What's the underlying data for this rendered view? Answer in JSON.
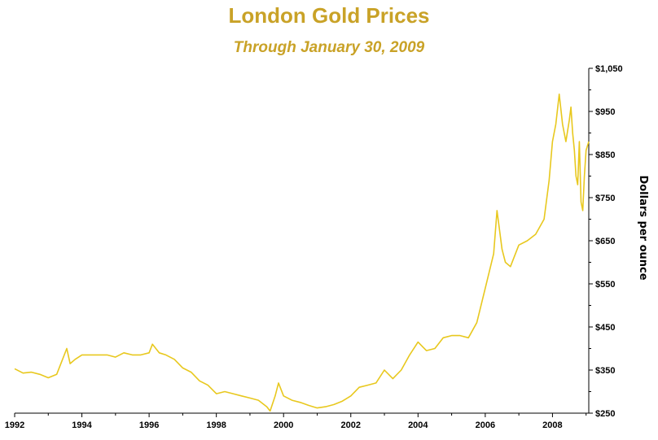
{
  "chart_data": {
    "type": "line",
    "title": "London Gold Prices",
    "subtitle": "Through January 30, 2009",
    "xlabel": "",
    "ylabel": "Dollars per ounce",
    "xlim": [
      1992.0,
      2009.08
    ],
    "ylim": [
      250,
      1050
    ],
    "x_ticks": [
      1992,
      1994,
      1996,
      1998,
      2000,
      2002,
      2004,
      2006,
      2008
    ],
    "y_ticks": [
      250,
      350,
      450,
      550,
      650,
      750,
      850,
      950,
      1050
    ],
    "y_tick_labels": [
      "$250",
      "$350",
      "$450",
      "$550",
      "$650",
      "$750",
      "$850",
      "$950",
      "$1,050"
    ],
    "y_axis_side": "right",
    "grid": false,
    "legend": "none",
    "line_color": "#e8c81e",
    "series": [
      {
        "x": [
          1992.0,
          1992.25,
          1992.5,
          1992.75,
          1993.0,
          1993.25,
          1993.4,
          1993.55,
          1993.65,
          1993.8,
          1994.0,
          1994.25,
          1994.5,
          1994.75,
          1995.0,
          1995.25,
          1995.5,
          1995.75,
          1996.0,
          1996.1,
          1996.3,
          1996.5,
          1996.75,
          1997.0,
          1997.25,
          1997.5,
          1997.75,
          1998.0,
          1998.25,
          1998.5,
          1998.75,
          1999.0,
          1999.25,
          1999.5,
          1999.6,
          1999.75,
          1999.85,
          2000.0,
          2000.25,
          2000.5,
          2000.75,
          2001.0,
          2001.25,
          2001.5,
          2001.75,
          2002.0,
          2002.25,
          2002.5,
          2002.75,
          2003.0,
          2003.25,
          2003.5,
          2003.75,
          2004.0,
          2004.25,
          2004.5,
          2004.75,
          2005.0,
          2005.25,
          2005.5,
          2005.75,
          2006.0,
          2006.25,
          2006.35,
          2006.5,
          2006.6,
          2006.75,
          2007.0,
          2007.25,
          2007.5,
          2007.75,
          2007.9,
          2008.0,
          2008.1,
          2008.2,
          2008.3,
          2008.4,
          2008.5,
          2008.55,
          2008.6,
          2008.65,
          2008.7,
          2008.75,
          2008.8,
          2008.85,
          2008.9,
          2008.95,
          2009.0,
          2009.08
        ],
        "y": [
          353,
          343,
          345,
          340,
          332,
          340,
          370,
          400,
          365,
          375,
          385,
          385,
          385,
          385,
          380,
          390,
          385,
          385,
          390,
          410,
          390,
          385,
          375,
          355,
          345,
          325,
          315,
          295,
          300,
          295,
          290,
          285,
          280,
          265,
          255,
          290,
          320,
          290,
          280,
          275,
          268,
          262,
          265,
          270,
          278,
          290,
          310,
          315,
          320,
          350,
          330,
          350,
          385,
          415,
          395,
          400,
          425,
          430,
          430,
          425,
          460,
          540,
          620,
          720,
          630,
          600,
          590,
          640,
          650,
          665,
          700,
          790,
          880,
          920,
          990,
          920,
          880,
          930,
          960,
          900,
          860,
          800,
          780,
          880,
          740,
          720,
          800,
          860,
          880
        ]
      }
    ]
  }
}
